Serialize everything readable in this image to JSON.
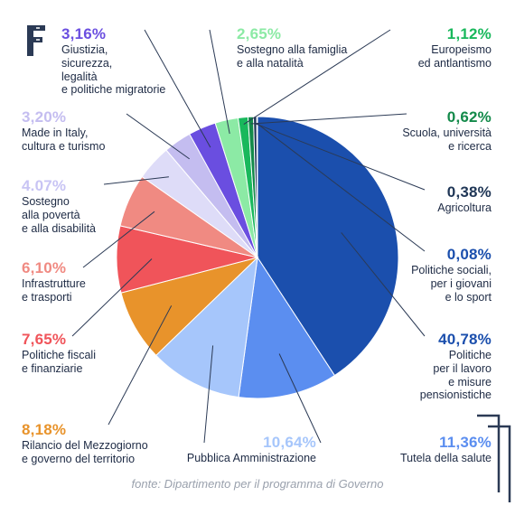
{
  "source": "fonte: Dipartimento per il programma di Governo",
  "logo": {
    "icon": "f-logo-icon",
    "color": "#2b3a55"
  },
  "chart_data": {
    "type": "pie",
    "title": "",
    "start_angle_deg": 0,
    "direction": "clockwise",
    "slices": [
      {
        "key": "s0",
        "label": "Politiche\nper il lavoro\ne misure\npensionistiche",
        "percent": "40,78%",
        "value": 40.78,
        "color": "#1b4fad",
        "pct_color": "#1b4fad"
      },
      {
        "key": "s1",
        "label": "Tutela della salute",
        "percent": "11,36%",
        "value": 11.36,
        "color": "#5b8ef0",
        "pct_color": "#5b8ef0"
      },
      {
        "key": "s2",
        "label": "Pubblica Amministrazione",
        "percent": "10,64%",
        "value": 10.64,
        "color": "#a6c6fb",
        "pct_color": "#a6c6fb"
      },
      {
        "key": "s3",
        "label": "Rilancio del Mezzogiorno\ne governo del territorio",
        "percent": "8,18%",
        "value": 8.18,
        "color": "#e8932b",
        "pct_color": "#e8932b"
      },
      {
        "key": "s4",
        "label": "Politiche fiscali\ne finanziarie",
        "percent": "7,65%",
        "value": 7.65,
        "color": "#f0545a",
        "pct_color": "#f0545a"
      },
      {
        "key": "s5",
        "label": "Infrastrutture\ne trasporti",
        "percent": "6,10%",
        "value": 6.1,
        "color": "#f08a82",
        "pct_color": "#f08a82"
      },
      {
        "key": "s6",
        "label": "Sostegno\nalla povertà\ne alla disabilità",
        "percent": "4.07%",
        "value": 4.07,
        "color": "#dedcf8",
        "pct_color": "#c8c4f4"
      },
      {
        "key": "s7",
        "label": "Made in Italy,\ncultura e turismo",
        "percent": "3,20%",
        "value": 3.2,
        "color": "#c4bdf0",
        "pct_color": "#c4bdf0"
      },
      {
        "key": "s8",
        "label": "Giustizia,\nsicurezza,\nlegalità\ne politiche migratorie",
        "percent": "3,16%",
        "value": 3.16,
        "color": "#6a4ee0",
        "pct_color": "#6a4ee0"
      },
      {
        "key": "s9",
        "label": "Sostegno alla famiglia\ne alla natalità",
        "percent": "2,65%",
        "value": 2.65,
        "color": "#8ceaa5",
        "pct_color": "#8ceaa5"
      },
      {
        "key": "s10",
        "label": "Europeismo\ned antlantismo",
        "percent": "1,12%",
        "value": 1.12,
        "color": "#19b85c",
        "pct_color": "#19b85c"
      },
      {
        "key": "s11",
        "label": "Scuola, università\ne ricerca",
        "percent": "0,62%",
        "value": 0.62,
        "color": "#138a4a",
        "pct_color": "#138a4a"
      },
      {
        "key": "s12",
        "label": "Agricoltura",
        "percent": "0,38%",
        "value": 0.38,
        "color": "#1f3656",
        "pct_color": "#1f3656"
      },
      {
        "key": "s13",
        "label": "Politiche sociali,\nper i giovani\ne lo sport",
        "percent": "0,08%",
        "value": 0.08,
        "color": "#1b4fad",
        "pct_color": "#1b4fad"
      }
    ]
  }
}
